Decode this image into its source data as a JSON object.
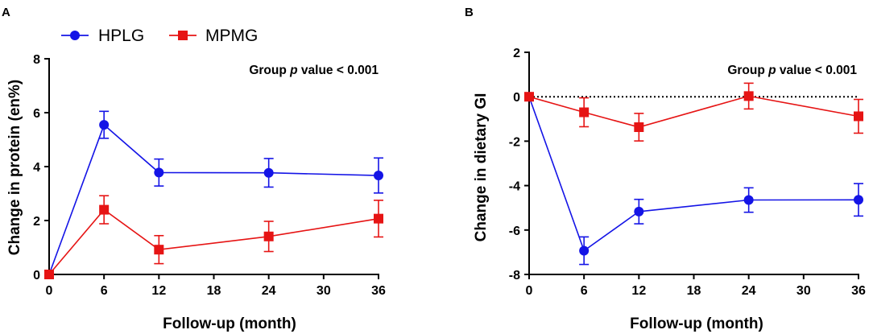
{
  "legend": {
    "hplg": "HPLG",
    "mpmg": "MPMG"
  },
  "colors": {
    "hplg": "#1414e6",
    "mpmg": "#e61414",
    "axis": "#000000"
  },
  "chart_data": [
    {
      "type": "line",
      "panel": "A",
      "title": "",
      "xlabel": "Follow-up (month)",
      "ylabel": "Change in protein (en%)",
      "annotation": {
        "prefix": "Group ",
        "italic": "p",
        "suffix": " value < 0.001"
      },
      "xlim": [
        0,
        36
      ],
      "ylim": [
        0,
        8
      ],
      "xticks": [
        "0",
        "6",
        "12",
        "18",
        "24",
        "30",
        "36"
      ],
      "yticks": [
        "0",
        "2",
        "4",
        "6",
        "8"
      ],
      "zero_line": false,
      "series": [
        {
          "name": "HPLG",
          "marker": "circle",
          "x": [
            0,
            6,
            12,
            24,
            36
          ],
          "y": [
            0,
            5.55,
            3.78,
            3.77,
            3.67
          ],
          "err": [
            0,
            0.5,
            0.5,
            0.53,
            0.65
          ]
        },
        {
          "name": "MPMG",
          "marker": "square",
          "x": [
            0,
            6,
            12,
            24,
            36
          ],
          "y": [
            0,
            2.4,
            0.92,
            1.41,
            2.07
          ],
          "err": [
            0,
            0.52,
            0.52,
            0.56,
            0.68
          ]
        }
      ]
    },
    {
      "type": "line",
      "panel": "B",
      "title": "",
      "xlabel": "Follow-up (month)",
      "ylabel": "Change in dietary GI",
      "annotation": {
        "prefix": "Group ",
        "italic": "p",
        "suffix": " value < 0.001"
      },
      "xlim": [
        0,
        36
      ],
      "ylim": [
        -8,
        2
      ],
      "xticks": [
        "0",
        "6",
        "12",
        "18",
        "24",
        "30",
        "36"
      ],
      "yticks": [
        "-8",
        "-6",
        "-4",
        "-2",
        "0",
        "2"
      ],
      "zero_line": true,
      "series": [
        {
          "name": "HPLG",
          "marker": "circle",
          "x": [
            0,
            6,
            12,
            24,
            36
          ],
          "y": [
            0,
            -6.93,
            -5.17,
            -4.65,
            -4.64
          ],
          "err": [
            0,
            0.62,
            0.55,
            0.55,
            0.73
          ]
        },
        {
          "name": "MPMG",
          "marker": "square",
          "x": [
            0,
            6,
            12,
            24,
            36
          ],
          "y": [
            0,
            -0.7,
            -1.37,
            0.03,
            -0.88
          ],
          "err": [
            0,
            0.65,
            0.62,
            0.58,
            0.76
          ]
        }
      ]
    }
  ]
}
